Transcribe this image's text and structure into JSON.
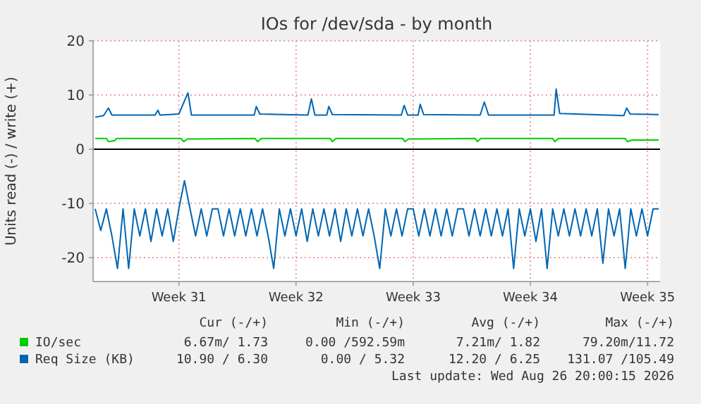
{
  "chart_data": {
    "type": "line",
    "title": "IOs for /dev/sda - by month",
    "ylabel": "Units read (-) / write (+)",
    "xlim": [
      "2026-07-21T21:00",
      "2026-08-24T18:00"
    ],
    "xticks": [
      {
        "value": "2026-07-27",
        "label": "Week 31"
      },
      {
        "value": "2026-08-03",
        "label": "Week 32"
      },
      {
        "value": "2026-08-10",
        "label": "Week 33"
      },
      {
        "value": "2026-08-17",
        "label": "Week 34"
      },
      {
        "value": "2026-08-24",
        "label": "Week 35"
      }
    ],
    "ylim": [
      -24.4,
      20
    ],
    "yticks": [
      -20,
      -10,
      0,
      10,
      20
    ],
    "grid": true,
    "legend": "bottom",
    "ref_lines": [
      {
        "axis": "y",
        "value": 0,
        "color": "#000000"
      }
    ],
    "series": [
      {
        "name": "IO/sec",
        "color": "#00cc00",
        "x": [
          "2026-07-22T00:00",
          "2026-07-22T16:00",
          "2026-07-22T19:00",
          "2026-07-23T04:00",
          "2026-07-23T07:00",
          "2026-07-27T03:00",
          "2026-07-27T07:00",
          "2026-07-27T12:00",
          "2026-07-31T13:00",
          "2026-07-31T17:00",
          "2026-07-31T22:00",
          "2026-08-05T01:00",
          "2026-08-05T04:00",
          "2026-08-05T09:00",
          "2026-08-09T09:00",
          "2026-08-09T12:00",
          "2026-08-09T17:00",
          "2026-08-13T17:00",
          "2026-08-13T20:00",
          "2026-08-14T01:00",
          "2026-08-18T08:00",
          "2026-08-18T11:00",
          "2026-08-18T16:00",
          "2026-08-22T16:00",
          "2026-08-22T19:00",
          "2026-08-23T02:00",
          "2026-08-24T16:00"
        ],
        "values": [
          2.0,
          2.0,
          1.4,
          1.6,
          2.0,
          2.0,
          1.4,
          1.9,
          2.0,
          1.4,
          2.0,
          2.0,
          1.4,
          2.0,
          2.0,
          1.4,
          1.9,
          2.0,
          1.4,
          2.0,
          2.0,
          1.4,
          2.0,
          2.0,
          1.4,
          1.7,
          1.7
        ]
      },
      {
        "name": "Req Size (KB)",
        "color": "#0066b3",
        "x": [
          "2026-07-22T00:00",
          "2026-07-22T12:00",
          "2026-07-22T19:00",
          "2026-07-23T00:00",
          "2026-07-25T14:00",
          "2026-07-25T18:00",
          "2026-07-25T21:00",
          "2026-07-27T00:00",
          "2026-07-27T13:00",
          "2026-07-27T18:00",
          "2026-07-31T12:00",
          "2026-07-31T15:00",
          "2026-07-31T20:00",
          "2026-08-03T17:00",
          "2026-08-03T22:00",
          "2026-08-04T03:00",
          "2026-08-04T20:00",
          "2026-08-04T23:00",
          "2026-08-05T04:00",
          "2026-08-09T07:00",
          "2026-08-09T11:00",
          "2026-08-09T16:00",
          "2026-08-10T07:00",
          "2026-08-10T10:00",
          "2026-08-10T15:00",
          "2026-08-14T00:00",
          "2026-08-14T06:00",
          "2026-08-14T12:00",
          "2026-08-18T10:00",
          "2026-08-18T13:00",
          "2026-08-18T18:00",
          "2026-08-22T14:00",
          "2026-08-22T18:00",
          "2026-08-22T23:00",
          "2026-08-24T16:00"
        ],
        "values": [
          5.9,
          6.2,
          7.6,
          6.3,
          6.3,
          7.2,
          6.3,
          6.5,
          10.4,
          6.3,
          6.3,
          7.9,
          6.5,
          6.3,
          9.3,
          6.3,
          6.3,
          7.9,
          6.4,
          6.3,
          8.1,
          6.3,
          6.3,
          8.3,
          6.4,
          6.3,
          8.7,
          6.3,
          6.3,
          11.1,
          6.6,
          6.2,
          7.6,
          6.5,
          6.4
        ]
      },
      {
        "color": "#0066b3",
        "x": [
          "2026-07-22T00:00",
          "2026-07-22T08:00",
          "2026-07-22T16:00",
          "2026-07-23T00:00",
          "2026-07-23T08:00",
          "2026-07-23T16:00",
          "2026-07-24T00:00",
          "2026-07-24T08:00",
          "2026-07-24T16:00",
          "2026-07-25T00:00",
          "2026-07-25T08:00",
          "2026-07-25T16:00",
          "2026-07-26T00:00",
          "2026-07-26T08:00",
          "2026-07-26T16:00",
          "2026-07-27T00:00",
          "2026-07-27T08:00",
          "2026-07-27T16:00",
          "2026-07-28T00:00",
          "2026-07-28T08:00",
          "2026-07-28T16:00",
          "2026-07-29T00:00",
          "2026-07-29T08:00",
          "2026-07-29T16:00",
          "2026-07-30T00:00",
          "2026-07-30T08:00",
          "2026-07-30T16:00",
          "2026-07-31T00:00",
          "2026-07-31T08:00",
          "2026-07-31T16:00",
          "2026-08-01T00:00",
          "2026-08-01T08:00",
          "2026-08-01T16:00",
          "2026-08-02T00:00",
          "2026-08-02T08:00",
          "2026-08-02T16:00",
          "2026-08-03T00:00",
          "2026-08-03T08:00",
          "2026-08-03T16:00",
          "2026-08-04T00:00",
          "2026-08-04T08:00",
          "2026-08-04T16:00",
          "2026-08-05T00:00",
          "2026-08-05T08:00",
          "2026-08-05T16:00",
          "2026-08-06T00:00",
          "2026-08-06T08:00",
          "2026-08-06T16:00",
          "2026-08-07T00:00",
          "2026-08-07T08:00",
          "2026-08-07T16:00",
          "2026-08-08T00:00",
          "2026-08-08T08:00",
          "2026-08-08T16:00",
          "2026-08-09T00:00",
          "2026-08-09T08:00",
          "2026-08-09T16:00",
          "2026-08-10T00:00",
          "2026-08-10T08:00",
          "2026-08-10T16:00",
          "2026-08-11T00:00",
          "2026-08-11T08:00",
          "2026-08-11T16:00",
          "2026-08-12T00:00",
          "2026-08-12T08:00",
          "2026-08-12T16:00",
          "2026-08-13T00:00",
          "2026-08-13T08:00",
          "2026-08-13T16:00",
          "2026-08-14T00:00",
          "2026-08-14T08:00",
          "2026-08-14T16:00",
          "2026-08-15T00:00",
          "2026-08-15T08:00",
          "2026-08-15T16:00",
          "2026-08-16T00:00",
          "2026-08-16T08:00",
          "2026-08-16T16:00",
          "2026-08-17T00:00",
          "2026-08-17T08:00",
          "2026-08-17T16:00",
          "2026-08-18T00:00",
          "2026-08-18T08:00",
          "2026-08-18T16:00",
          "2026-08-19T00:00",
          "2026-08-19T08:00",
          "2026-08-19T16:00",
          "2026-08-20T00:00",
          "2026-08-20T08:00",
          "2026-08-20T16:00",
          "2026-08-21T00:00",
          "2026-08-21T08:00",
          "2026-08-21T16:00",
          "2026-08-22T00:00",
          "2026-08-22T08:00",
          "2026-08-22T16:00",
          "2026-08-23T00:00",
          "2026-08-23T08:00",
          "2026-08-23T16:00",
          "2026-08-24T00:00",
          "2026-08-24T08:00",
          "2026-08-24T16:00"
        ],
        "values": [
          -11,
          -15,
          -11,
          -16,
          -22,
          -11,
          -22,
          -11,
          -16,
          -11,
          -17,
          -11,
          -16,
          -11,
          -17,
          -11,
          -5.8,
          -11,
          -16,
          -11,
          -16,
          -11,
          -11,
          -16,
          -11,
          -16,
          -11,
          -16,
          -11,
          -16,
          -11,
          -16,
          -22,
          -11,
          -16,
          -11,
          -16,
          -11,
          -17,
          -11,
          -16,
          -11,
          -16,
          -11,
          -17,
          -11,
          -16,
          -11,
          -16,
          -11,
          -16,
          -22,
          -11,
          -16,
          -11,
          -16,
          -11,
          -11,
          -16,
          -11,
          -16,
          -11,
          -16,
          -11,
          -16,
          -11,
          -11,
          -16,
          -11,
          -16,
          -11,
          -16,
          -11,
          -16,
          -11,
          -22,
          -11,
          -16,
          -11,
          -17,
          -11,
          -22,
          -11,
          -16,
          -11,
          -16,
          -11,
          -16,
          -11,
          -16,
          -11,
          -21,
          -11,
          -16,
          -11,
          -22,
          -11,
          -16,
          -11,
          -16,
          -11,
          -11
        ]
      }
    ],
    "annotations": [
      "Cur (-/+)",
      "Min (-/+)",
      "Avg (-/+)",
      "Max (-/+)",
      "6.67m/ 1.73",
      "0.00 /592.59m",
      "7.21m/ 1.82",
      "79.20m/11.72",
      "10.90 / 6.30",
      "0.00 / 5.32",
      "12.20 / 6.25",
      "131.07 /105.49",
      "Last update: Wed Aug 26 20:00:15 2026"
    ]
  }
}
